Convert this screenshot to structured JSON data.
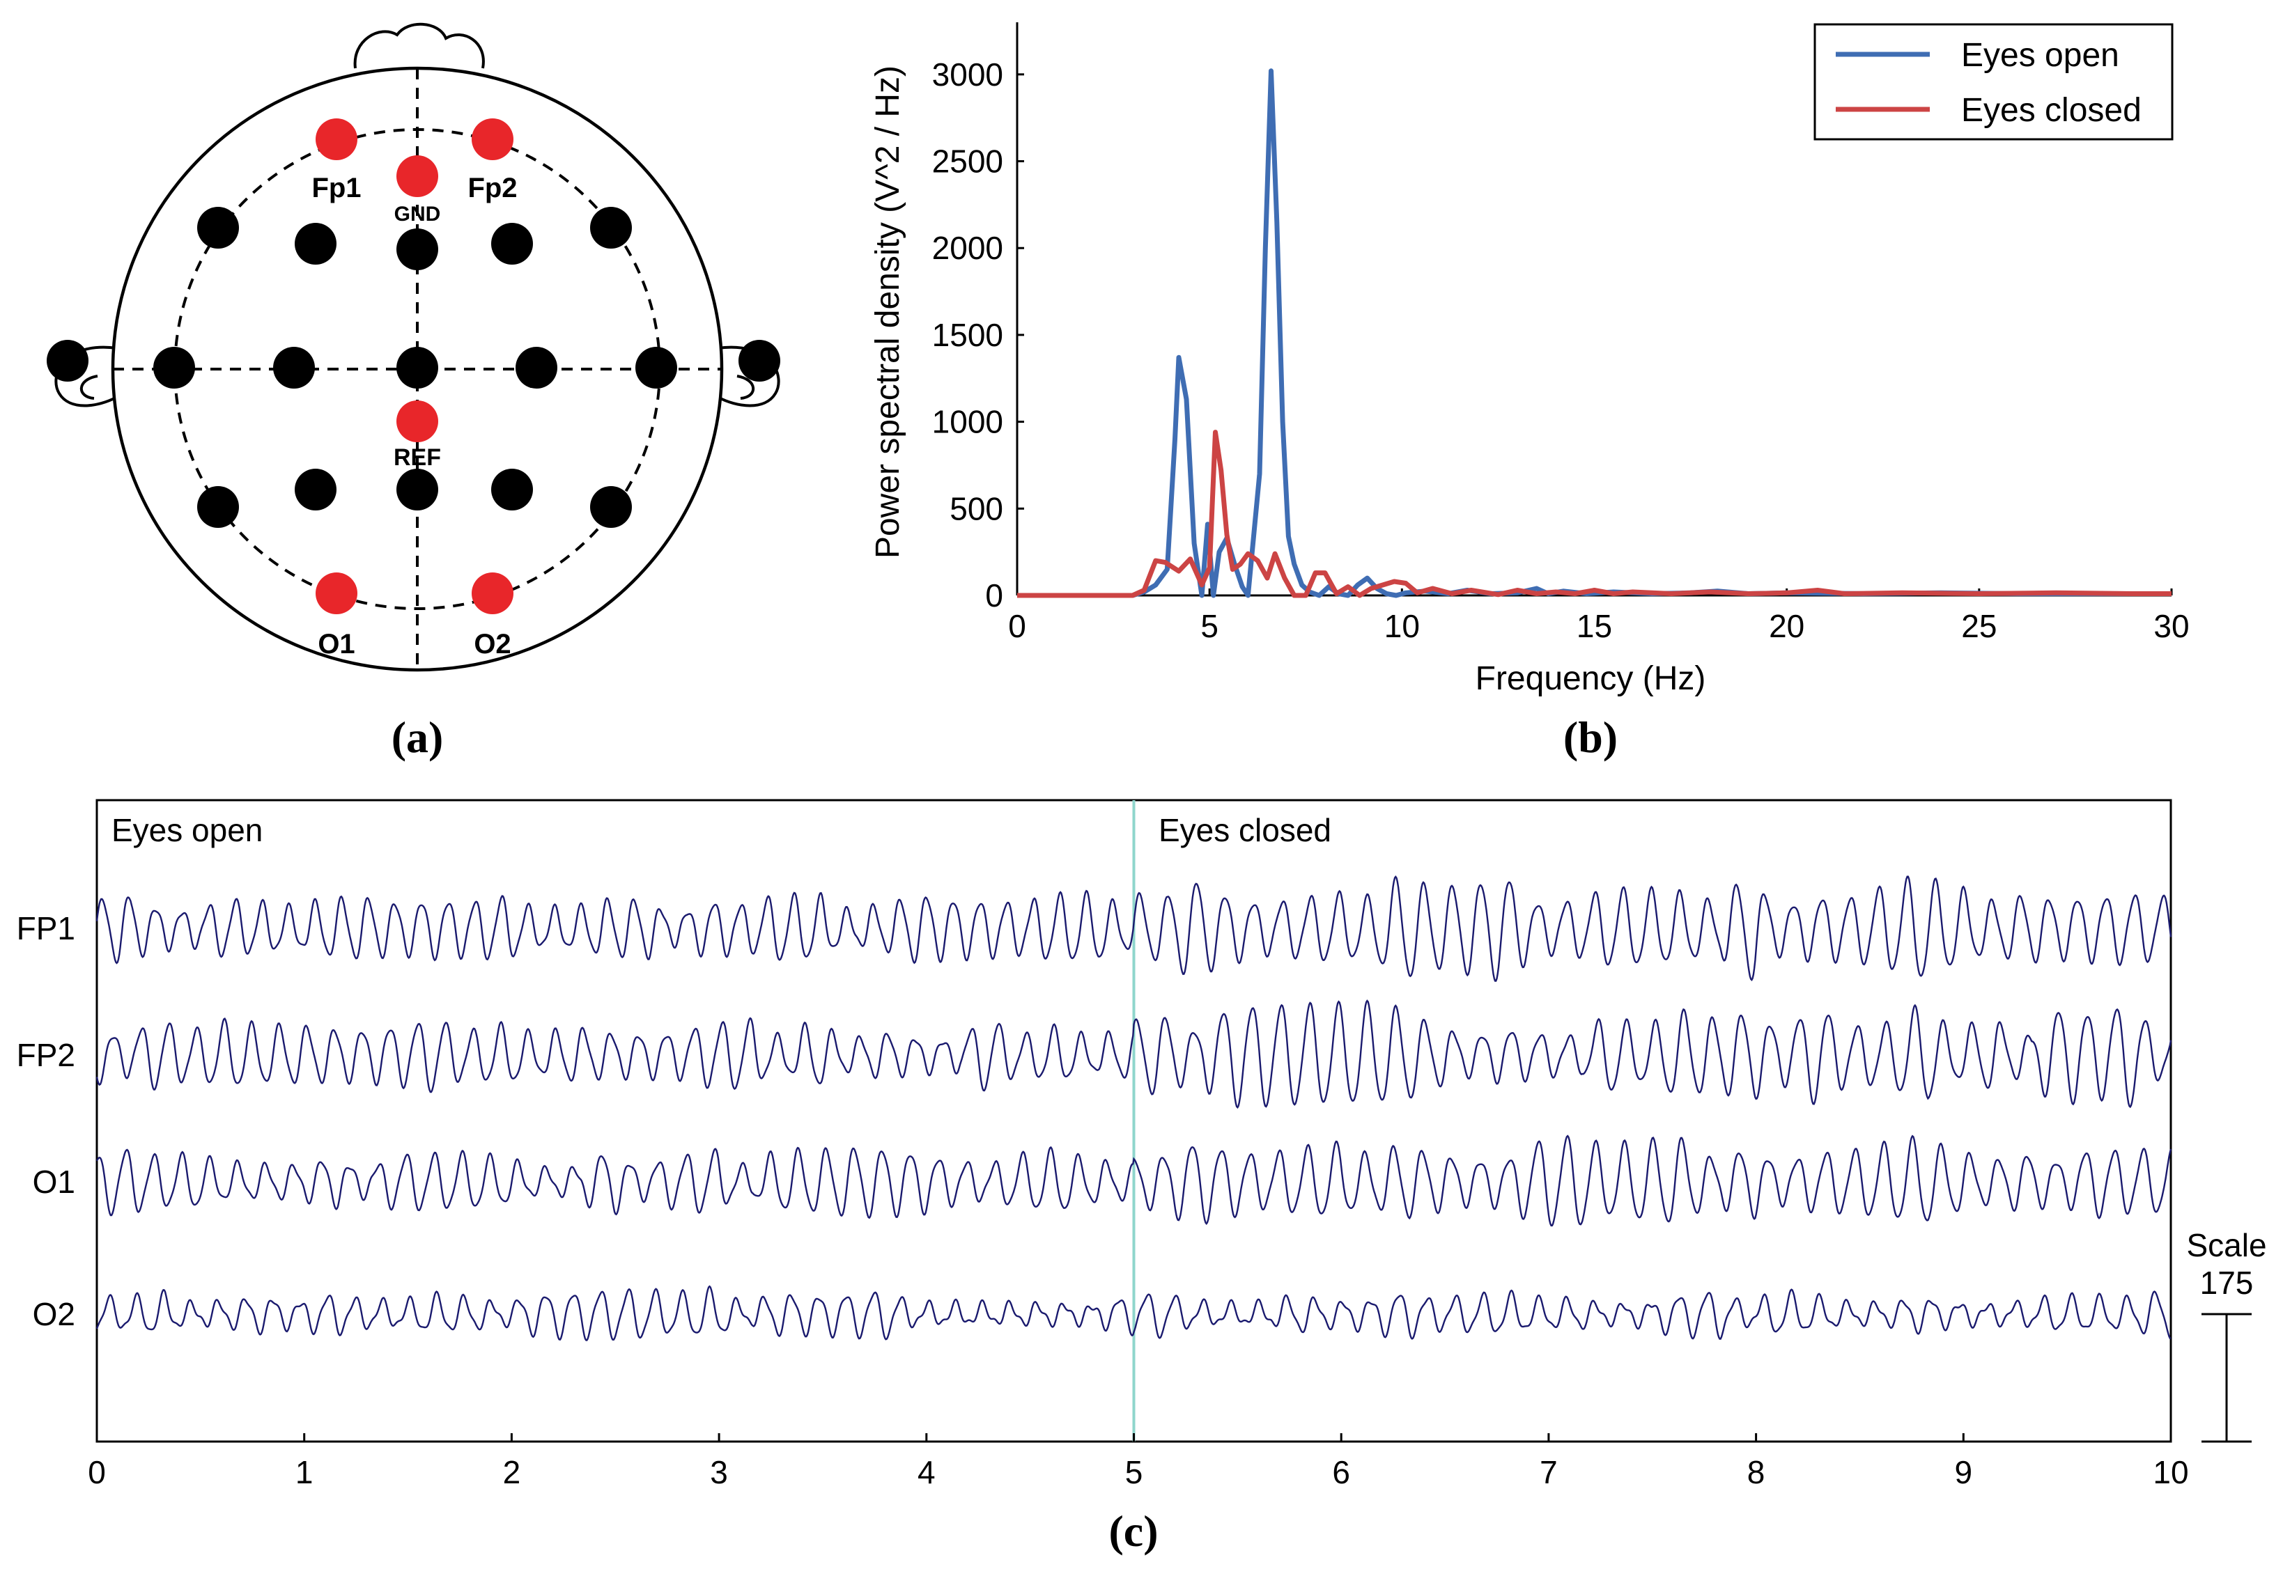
{
  "head_map": {
    "caption": "(a)",
    "electrodes": [
      {
        "name": "Fp1",
        "color": "#e8262a",
        "labeled": true
      },
      {
        "name": "Fp2",
        "color": "#e8262a",
        "labeled": true
      },
      {
        "name": "GND",
        "color": "#e8262a",
        "labeled": true
      },
      {
        "name": "REF",
        "color": "#e8262a",
        "labeled": true
      },
      {
        "name": "O1",
        "color": "#e8262a",
        "labeled": true
      },
      {
        "name": "O2",
        "color": "#e8262a",
        "labeled": true
      }
    ],
    "other_electrode_color": "#000000"
  },
  "chart_data": [
    {
      "type": "line",
      "panel": "(b)",
      "xlabel": "Frequency (Hz)",
      "ylabel": "Power spectral density (V^2 / Hz)",
      "xlim": [
        0,
        30
      ],
      "ylim": [
        0,
        3300
      ],
      "xticks": [
        "0",
        "5",
        "10",
        "15",
        "20",
        "25",
        "30"
      ],
      "yticks": [
        "0",
        "500",
        "1000",
        "1500",
        "2000",
        "2500",
        "3000"
      ],
      "legend_position": "top-right",
      "series": [
        {
          "name": "Eyes open",
          "color": "#3f6db3",
          "x": [
            0,
            3,
            3.3,
            3.6,
            3.9,
            4.1,
            4.2,
            4.4,
            4.6,
            4.8,
            4.95,
            5.1,
            5.25,
            5.45,
            5.65,
            5.85,
            6.0,
            6.3,
            6.45,
            6.6,
            6.75,
            6.9,
            7.05,
            7.2,
            7.4,
            7.6,
            7.85,
            8.1,
            8.35,
            8.6,
            8.85,
            9.1,
            9.35,
            9.6,
            9.85,
            10.1,
            10.6,
            11.2,
            11.7,
            12.3,
            13.0,
            13.5,
            13.8,
            14.2,
            14.8,
            15.5,
            16.5,
            17.5,
            18.2,
            19.0,
            20,
            22,
            24,
            26,
            28,
            30
          ],
          "y": [
            0,
            0,
            20,
            60,
            150,
            900,
            1370,
            1130,
            300,
            0,
            410,
            0,
            250,
            330,
            180,
            50,
            0,
            700,
            2000,
            3020,
            2150,
            1000,
            340,
            180,
            60,
            20,
            0,
            50,
            10,
            0,
            60,
            100,
            40,
            10,
            0,
            15,
            25,
            10,
            30,
            10,
            15,
            40,
            10,
            25,
            10,
            20,
            10,
            15,
            25,
            10,
            15,
            10,
            15,
            10,
            10,
            10
          ]
        },
        {
          "name": "Eyes closed",
          "color": "#cc4444",
          "x": [
            0,
            3,
            3.3,
            3.6,
            3.85,
            4.2,
            4.5,
            4.8,
            5.0,
            5.15,
            5.3,
            5.45,
            5.6,
            5.8,
            6.0,
            6.25,
            6.5,
            6.7,
            6.95,
            7.2,
            7.5,
            7.75,
            8.0,
            8.3,
            8.6,
            8.9,
            9.2,
            9.5,
            9.8,
            10.1,
            10.4,
            10.8,
            11.3,
            11.8,
            12.5,
            13.0,
            13.5,
            14.0,
            14.5,
            15.0,
            15.5,
            16.0,
            17.0,
            18.0,
            19.0,
            20.0,
            20.8,
            21.5,
            23.0,
            25.0,
            27.0,
            29.0,
            30
          ],
          "y": [
            0,
            0,
            30,
            200,
            190,
            140,
            210,
            60,
            160,
            940,
            720,
            350,
            150,
            180,
            240,
            200,
            100,
            240,
            100,
            0,
            0,
            130,
            130,
            10,
            50,
            0,
            40,
            60,
            80,
            70,
            15,
            40,
            10,
            30,
            5,
            30,
            10,
            20,
            10,
            30,
            10,
            20,
            10,
            20,
            10,
            15,
            30,
            10,
            15,
            10,
            15,
            10,
            10
          ]
        }
      ]
    },
    {
      "type": "line",
      "panel": "(c)",
      "x_unit": "s",
      "xlim": [
        0,
        10
      ],
      "xticks": [
        "0",
        "1",
        "2",
        "3",
        "4",
        "5",
        "6",
        "7",
        "8",
        "9",
        "10"
      ],
      "annotations": [
        "Eyes open",
        "Eyes closed"
      ],
      "event_marker_time": 5,
      "event_marker_color": "#8fd6cc",
      "trace_color": "#1a1a6e",
      "scale_label": "Scale",
      "scale_value": "175",
      "channels": [
        {
          "name": "FP1",
          "open": {
            "freq": 7.8,
            "amp": 1.0
          },
          "closed": {
            "freq": 7.3,
            "amp": 1.55
          }
        },
        {
          "name": "FP2",
          "open": {
            "freq": 7.5,
            "amp": 1.05
          },
          "closed": {
            "freq": 7.2,
            "amp": 1.5
          }
        },
        {
          "name": "O1",
          "open": {
            "freq": 7.4,
            "amp": 0.95
          },
          "closed": {
            "freq": 7.2,
            "amp": 1.25
          }
        },
        {
          "name": "O2",
          "open": {
            "freq": 7.6,
            "amp": 0.7
          },
          "closed": {
            "freq": 7.4,
            "amp": 0.65
          }
        }
      ]
    }
  ]
}
